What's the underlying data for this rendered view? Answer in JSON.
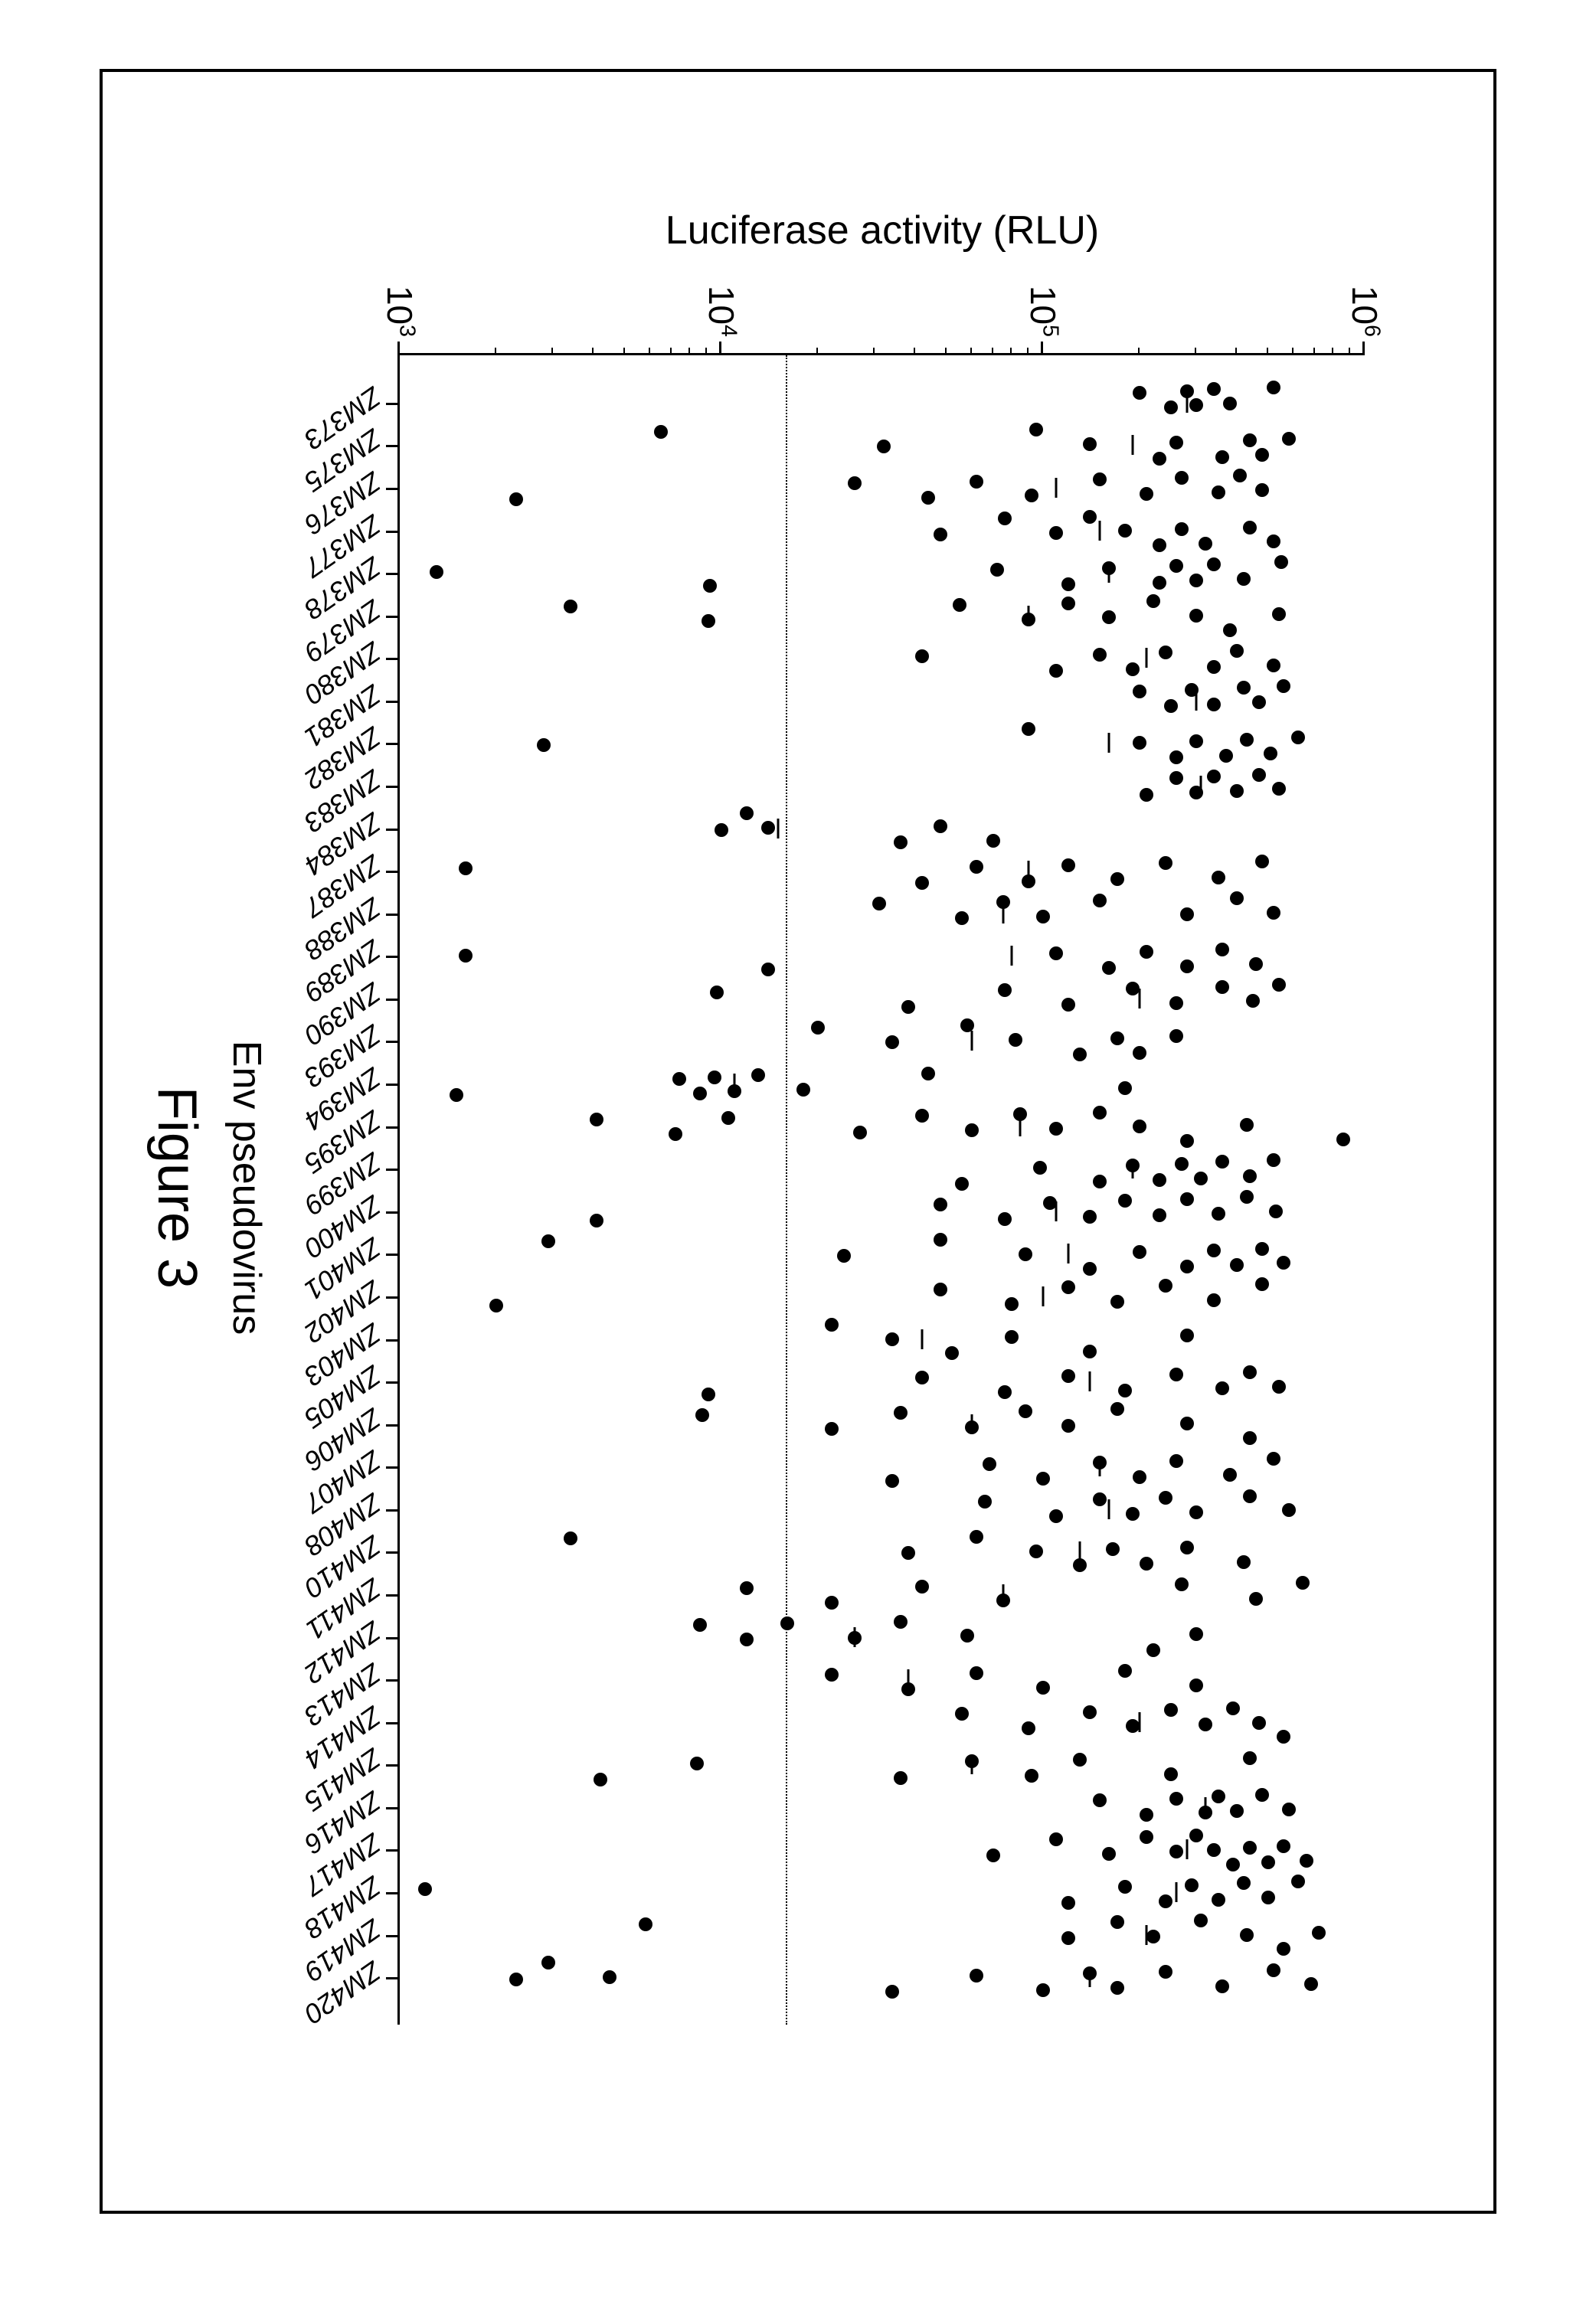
{
  "chart": {
    "type": "scatter-strip",
    "caption": "Figure 3",
    "xlabel": "Env pseudovirus",
    "ylabel": "Luciferase activity (RLU)",
    "yscale": "log10",
    "ylim": [
      1000,
      1000000
    ],
    "ytick_exponents": [
      3,
      4,
      5,
      6
    ],
    "threshold": 16000,
    "point_color": "#000000",
    "point_radius": 9,
    "median_tick_width": 26,
    "background_color": "#ffffff",
    "axis_color": "#000000",
    "tick_fontsize": 46,
    "xlabel_fontsize": 52,
    "ylabel_fontsize": 52,
    "xtick_fontsize": 36,
    "xtick_fontstyle": "italic",
    "caption_fontsize": 72,
    "categories": [
      "ZM373",
      "ZM375",
      "ZM376",
      "ZM377",
      "ZM378",
      "ZM379",
      "ZM380",
      "ZM381",
      "ZM382",
      "ZM383",
      "ZM384",
      "ZM387",
      "ZM388",
      "ZM389",
      "ZM390",
      "ZM393",
      "ZM394",
      "ZM395",
      "ZM399",
      "ZM400",
      "ZM401",
      "ZM402",
      "ZM403",
      "ZM405",
      "ZM406",
      "ZM407",
      "ZM408",
      "ZM410",
      "ZM411",
      "ZM412",
      "ZM413",
      "ZM414",
      "ZM415",
      "ZM416",
      "ZM417",
      "ZM418",
      "ZM419",
      "ZM420"
    ],
    "series": [
      {
        "cat": "ZM373",
        "median": 280000,
        "points": [
          520000,
          380000,
          340000,
          300000,
          280000,
          250000,
          200000
        ]
      },
      {
        "cat": "ZM375",
        "median": 190000,
        "points": [
          580000,
          480000,
          440000,
          360000,
          260000,
          230000,
          140000,
          95000,
          32000,
          6500
        ]
      },
      {
        "cat": "ZM376",
        "median": 110000,
        "points": [
          480000,
          410000,
          350000,
          270000,
          210000,
          150000,
          92000,
          62000,
          44000,
          26000,
          2300
        ]
      },
      {
        "cat": "ZM377",
        "median": 150000,
        "points": [
          520000,
          440000,
          320000,
          270000,
          230000,
          180000,
          140000,
          110000,
          76000,
          48000
        ]
      },
      {
        "cat": "ZM378",
        "median": 160000,
        "points": [
          550000,
          420000,
          340000,
          300000,
          260000,
          230000,
          160000,
          120000,
          72000,
          9200,
          1300
        ]
      },
      {
        "cat": "ZM379",
        "median": 90000,
        "points": [
          540000,
          380000,
          300000,
          220000,
          160000,
          120000,
          90000,
          55000,
          9100,
          3400
        ]
      },
      {
        "cat": "ZM380",
        "median": 210000,
        "points": [
          520000,
          400000,
          340000,
          240000,
          190000,
          150000,
          110000,
          42000
        ]
      },
      {
        "cat": "ZM381",
        "median": 300000,
        "points": [
          560000,
          470000,
          420000,
          340000,
          290000,
          250000,
          200000
        ]
      },
      {
        "cat": "ZM382",
        "median": 160000,
        "points": [
          620000,
          510000,
          430000,
          370000,
          300000,
          260000,
          200000,
          90000,
          2800
        ]
      },
      {
        "cat": "ZM383",
        "median": 310000,
        "points": [
          540000,
          470000,
          400000,
          340000,
          300000,
          260000,
          210000
        ]
      },
      {
        "cat": "ZM384",
        "median": 15000,
        "points": [
          70000,
          48000,
          36000,
          14000,
          12000,
          10000
        ]
      },
      {
        "cat": "ZM387",
        "median": 90000,
        "points": [
          480000,
          350000,
          240000,
          170000,
          120000,
          90000,
          62000,
          42000,
          1600
        ]
      },
      {
        "cat": "ZM388",
        "median": 75000,
        "points": [
          520000,
          400000,
          280000,
          150000,
          100000,
          75000,
          56000,
          31000
        ]
      },
      {
        "cat": "ZM389",
        "median": 80000,
        "points": [
          460000,
          360000,
          280000,
          210000,
          160000,
          110000,
          14000,
          1600
        ]
      },
      {
        "cat": "ZM390",
        "median": 200000,
        "points": [
          540000,
          450000,
          360000,
          260000,
          190000,
          120000,
          76000,
          38000,
          9700
        ]
      },
      {
        "cat": "ZM393",
        "median": 60000,
        "points": [
          260000,
          200000,
          170000,
          130000,
          82000,
          58000,
          34000,
          20000
        ]
      },
      {
        "cat": "ZM394",
        "median": 11000,
        "points": [
          180000,
          44000,
          18000,
          13000,
          11000,
          9500,
          8600,
          7400,
          1500
        ]
      },
      {
        "cat": "ZM395",
        "median": 85000,
        "points": [
          860000,
          430000,
          280000,
          200000,
          150000,
          110000,
          85000,
          60000,
          42000,
          27000,
          10500,
          7200,
          4100
        ]
      },
      {
        "cat": "ZM399",
        "median": 190000,
        "points": [
          520000,
          440000,
          360000,
          310000,
          270000,
          230000,
          190000,
          150000,
          98000,
          56000
        ]
      },
      {
        "cat": "ZM400",
        "median": 110000,
        "points": [
          530000,
          430000,
          350000,
          280000,
          230000,
          180000,
          140000,
          105000,
          76000,
          48000,
          4100
        ]
      },
      {
        "cat": "ZM401",
        "median": 120000,
        "points": [
          560000,
          480000,
          400000,
          340000,
          280000,
          200000,
          140000,
          88000,
          48000,
          24000,
          2900
        ]
      },
      {
        "cat": "ZM402",
        "median": 100000,
        "points": [
          480000,
          340000,
          240000,
          170000,
          120000,
          80000,
          48000,
          2000
        ]
      },
      {
        "cat": "ZM403",
        "median": 42000,
        "points": [
          280000,
          140000,
          80000,
          52000,
          34000,
          22000
        ]
      },
      {
        "cat": "ZM405",
        "median": 140000,
        "points": [
          540000,
          440000,
          360000,
          260000,
          180000,
          120000,
          76000,
          42000,
          9100
        ]
      },
      {
        "cat": "ZM406",
        "median": 60000,
        "points": [
          440000,
          280000,
          170000,
          120000,
          88000,
          60000,
          36000,
          22000,
          8700
        ]
      },
      {
        "cat": "ZM407",
        "median": 150000,
        "points": [
          520000,
          380000,
          260000,
          200000,
          150000,
          100000,
          68000,
          34000
        ]
      },
      {
        "cat": "ZM408",
        "median": 160000,
        "points": [
          580000,
          440000,
          300000,
          240000,
          190000,
          150000,
          110000,
          66000
        ]
      },
      {
        "cat": "ZM410",
        "median": 130000,
        "points": [
          420000,
          280000,
          210000,
          165000,
          130000,
          95000,
          62000,
          38000,
          3400
        ]
      },
      {
        "cat": "ZM411",
        "median": 75000,
        "points": [
          640000,
          460000,
          270000,
          75000,
          42000,
          22000,
          12000
        ]
      },
      {
        "cat": "ZM412",
        "median": 26000,
        "points": [
          300000,
          220000,
          58000,
          36000,
          26000,
          16000,
          12000,
          8600
        ]
      },
      {
        "cat": "ZM413",
        "median": 38000,
        "points": [
          300000,
          180000,
          100000,
          62000,
          38000,
          22000
        ]
      },
      {
        "cat": "ZM414",
        "median": 200000,
        "points": [
          560000,
          470000,
          390000,
          320000,
          250000,
          190000,
          140000,
          90000,
          56000
        ]
      },
      {
        "cat": "ZM415",
        "median": 60000,
        "points": [
          440000,
          250000,
          130000,
          92000,
          60000,
          36000,
          8400,
          4200
        ]
      },
      {
        "cat": "ZM416",
        "median": 320000,
        "points": [
          580000,
          480000,
          400000,
          350000,
          320000,
          260000,
          210000,
          150000
        ]
      },
      {
        "cat": "ZM417",
        "median": 280000,
        "points": [
          660000,
          560000,
          500000,
          440000,
          390000,
          340000,
          300000,
          260000,
          210000,
          160000,
          110000,
          70000
        ]
      },
      {
        "cat": "ZM418",
        "median": 260000,
        "points": [
          620000,
          500000,
          420000,
          350000,
          290000,
          240000,
          180000,
          120000,
          1200
        ]
      },
      {
        "cat": "ZM419",
        "median": 210000,
        "points": [
          720000,
          560000,
          430000,
          310000,
          220000,
          170000,
          120000,
          5800
        ]
      },
      {
        "cat": "ZM420",
        "median": 140000,
        "points": [
          680000,
          520000,
          360000,
          240000,
          170000,
          140000,
          100000,
          62000,
          34000,
          4500,
          2900,
          2300
        ]
      }
    ]
  }
}
